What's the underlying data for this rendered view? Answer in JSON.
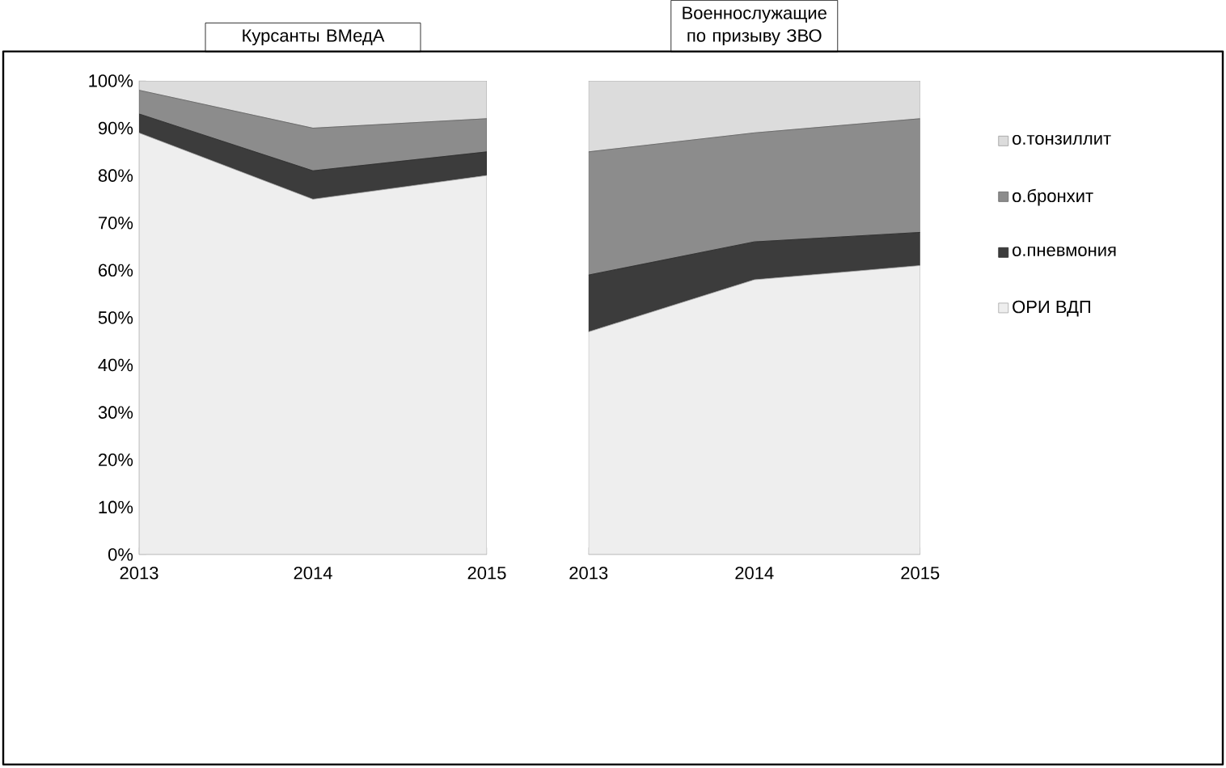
{
  "chart_data": [
    {
      "type": "area",
      "title": "Курсанты ВМедА",
      "categories": [
        "2013",
        "2014",
        "2015"
      ],
      "stacked": true,
      "ylim": [
        0,
        100
      ],
      "yticks": [
        {
          "value": 0,
          "label": "0%"
        },
        {
          "value": 10,
          "label": "10%"
        },
        {
          "value": 20,
          "label": "20%"
        },
        {
          "value": 30,
          "label": "30%"
        },
        {
          "value": 40,
          "label": "40%"
        },
        {
          "value": 50,
          "label": "50%"
        },
        {
          "value": 60,
          "label": "60%"
        },
        {
          "value": 70,
          "label": "70%"
        },
        {
          "value": 80,
          "label": "80%"
        },
        {
          "value": 90,
          "label": "90%"
        },
        {
          "value": 100,
          "label": "100%"
        }
      ],
      "series": [
        {
          "color": "#eeeeee",
          "values": [
            89,
            75,
            80
          ]
        },
        {
          "color": "#3c3c3c",
          "values": [
            4,
            6,
            5
          ]
        },
        {
          "color": "#8c8c8c",
          "values": [
            5,
            9,
            7
          ]
        },
        {
          "color": "#dcdcdc",
          "values": [
            2,
            10,
            8
          ]
        }
      ]
    },
    {
      "type": "area",
      "title": "Военнослужащие по призыву ЗВО",
      "categories": [
        "2013",
        "2014",
        "2015"
      ],
      "stacked": true,
      "ylim": [
        0,
        100
      ],
      "tick_labels": "x",
      "legend": "right",
      "series": [
        {
          "name": "ОРИ ВДП",
          "color": "#eeeeee",
          "values": [
            47,
            58,
            61
          ]
        },
        {
          "name": "о.пневмония",
          "color": "#3c3c3c",
          "values": [
            12,
            8,
            7
          ]
        },
        {
          "name": "о.бронхит",
          "color": "#8c8c8c",
          "values": [
            26,
            23,
            24
          ]
        },
        {
          "name": "о.тонзиллит",
          "color": "#dcdcdc",
          "values": [
            15,
            11,
            8
          ]
        }
      ]
    }
  ]
}
